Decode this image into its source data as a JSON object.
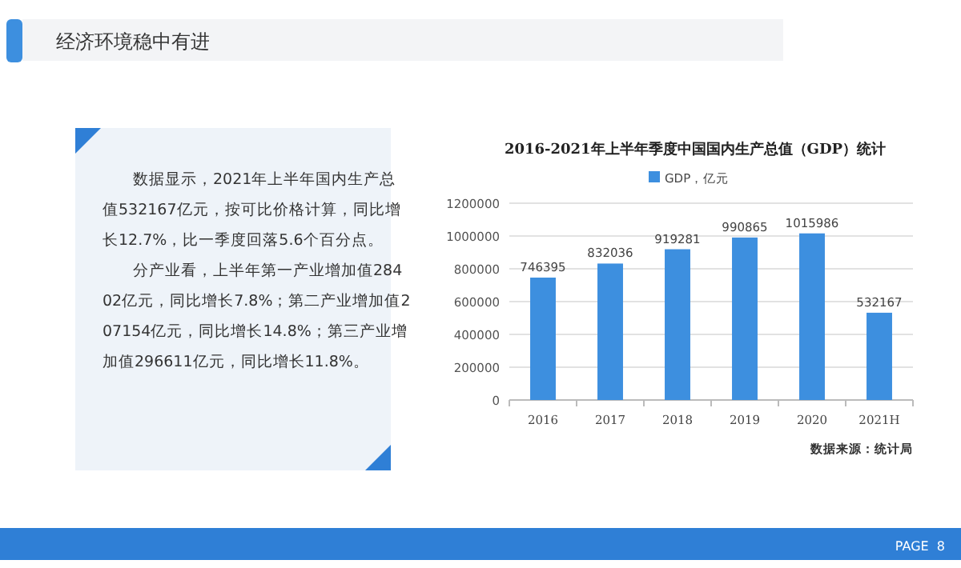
{
  "chart_data": {
    "type": "bar",
    "title": "2016-2021年上半年季度中国国内生产总值（GDP）统计",
    "categories": [
      "2016",
      "2017",
      "2018",
      "2019",
      "2020",
      "2021H"
    ],
    "series": [
      {
        "name": "GDP，亿元",
        "color": "#3d8fdf",
        "values": [
          746395,
          832036,
          919281,
          990865,
          1015986,
          532167
        ]
      }
    ],
    "ylim": [
      0,
      1200000
    ],
    "yticks": [
      0,
      200000,
      400000,
      600000,
      800000,
      1000000,
      1200000
    ],
    "grid": "y",
    "legend": "top",
    "data_labels": true,
    "annotations": [
      "经济环境稳中有进",
      "数据显示，2021年上半年国内生产总值532167亿元，按可比价格计算，同比增长12.7%，比一季度回落5.6个百分点。",
      "分产业看，上半年第一产业增加值28402亿元，同比增长7.8%；第二产业增加值207154亿元，同比增长14.8%；第三产业增加值296611亿元，同比增长11.8%。",
      "数据来源：统计局",
      "PAGE  8"
    ]
  }
}
